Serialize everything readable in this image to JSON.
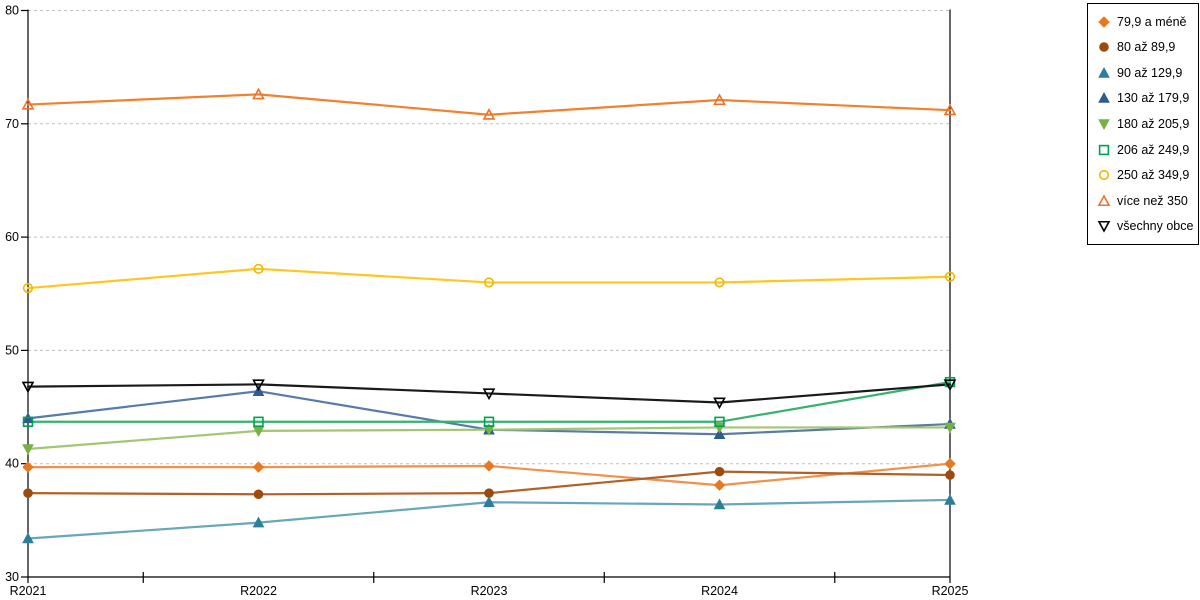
{
  "chart_data": {
    "type": "line",
    "title": "",
    "xlabel": "",
    "ylabel": "",
    "x": [
      "R2021",
      "R2022",
      "R2023",
      "R2024",
      "R2025"
    ],
    "ylim": [
      30,
      80
    ],
    "ytick_step": 10,
    "grid": "horizontal-dashed",
    "grid_color": "#bfbfbf",
    "axis_color": "#000000",
    "legend_position": "top-right",
    "series": [
      {
        "name": "79,9 a méně",
        "marker": "diamond",
        "filled": true,
        "color": "#e8771f",
        "line_color": "#f0924a",
        "values": [
          39.7,
          39.7,
          39.8,
          38.1,
          40.0
        ]
      },
      {
        "name": "80 až 89,9",
        "marker": "circle",
        "filled": true,
        "color": "#9c4a0f",
        "line_color": "#b26026",
        "values": [
          37.4,
          37.3,
          37.4,
          39.3,
          39.0
        ]
      },
      {
        "name": "90 až 129,9",
        "marker": "triangle-up",
        "filled": true,
        "color": "#2c7f98",
        "line_color": "#68a6ba",
        "values": [
          33.4,
          34.8,
          36.6,
          36.4,
          36.8
        ]
      },
      {
        "name": "130 až 179,9",
        "marker": "triangle-up",
        "filled": true,
        "color": "#2f5b8f",
        "line_color": "#587ba8",
        "values": [
          44.0,
          46.4,
          43.0,
          42.6,
          43.5
        ]
      },
      {
        "name": "180 až 205,9",
        "marker": "triangle-down",
        "filled": true,
        "color": "#76b143",
        "line_color": "#a2c671",
        "values": [
          41.3,
          42.9,
          43.0,
          43.2,
          43.2
        ]
      },
      {
        "name": "206 až 249,9",
        "marker": "square",
        "filled": false,
        "color": "#00a050",
        "line_color": "#34b26f",
        "values": [
          43.7,
          43.7,
          43.7,
          43.7,
          47.2
        ]
      },
      {
        "name": "250 až 349,9",
        "marker": "circle",
        "filled": false,
        "color": "#f2b800",
        "line_color": "#ffc61e",
        "values": [
          55.5,
          57.2,
          56.0,
          56.0,
          56.5
        ]
      },
      {
        "name": "více než 350",
        "marker": "triangle-up",
        "filled": false,
        "color": "#ed7128",
        "line_color": "#f0822e",
        "values": [
          71.7,
          72.6,
          70.8,
          72.1,
          71.2
        ]
      },
      {
        "name": "všechny obce",
        "marker": "triangle-down",
        "filled": false,
        "color": "#000000",
        "line_color": "#1a1a1a",
        "values": [
          46.8,
          47.0,
          46.2,
          45.4,
          47.0
        ]
      }
    ]
  }
}
